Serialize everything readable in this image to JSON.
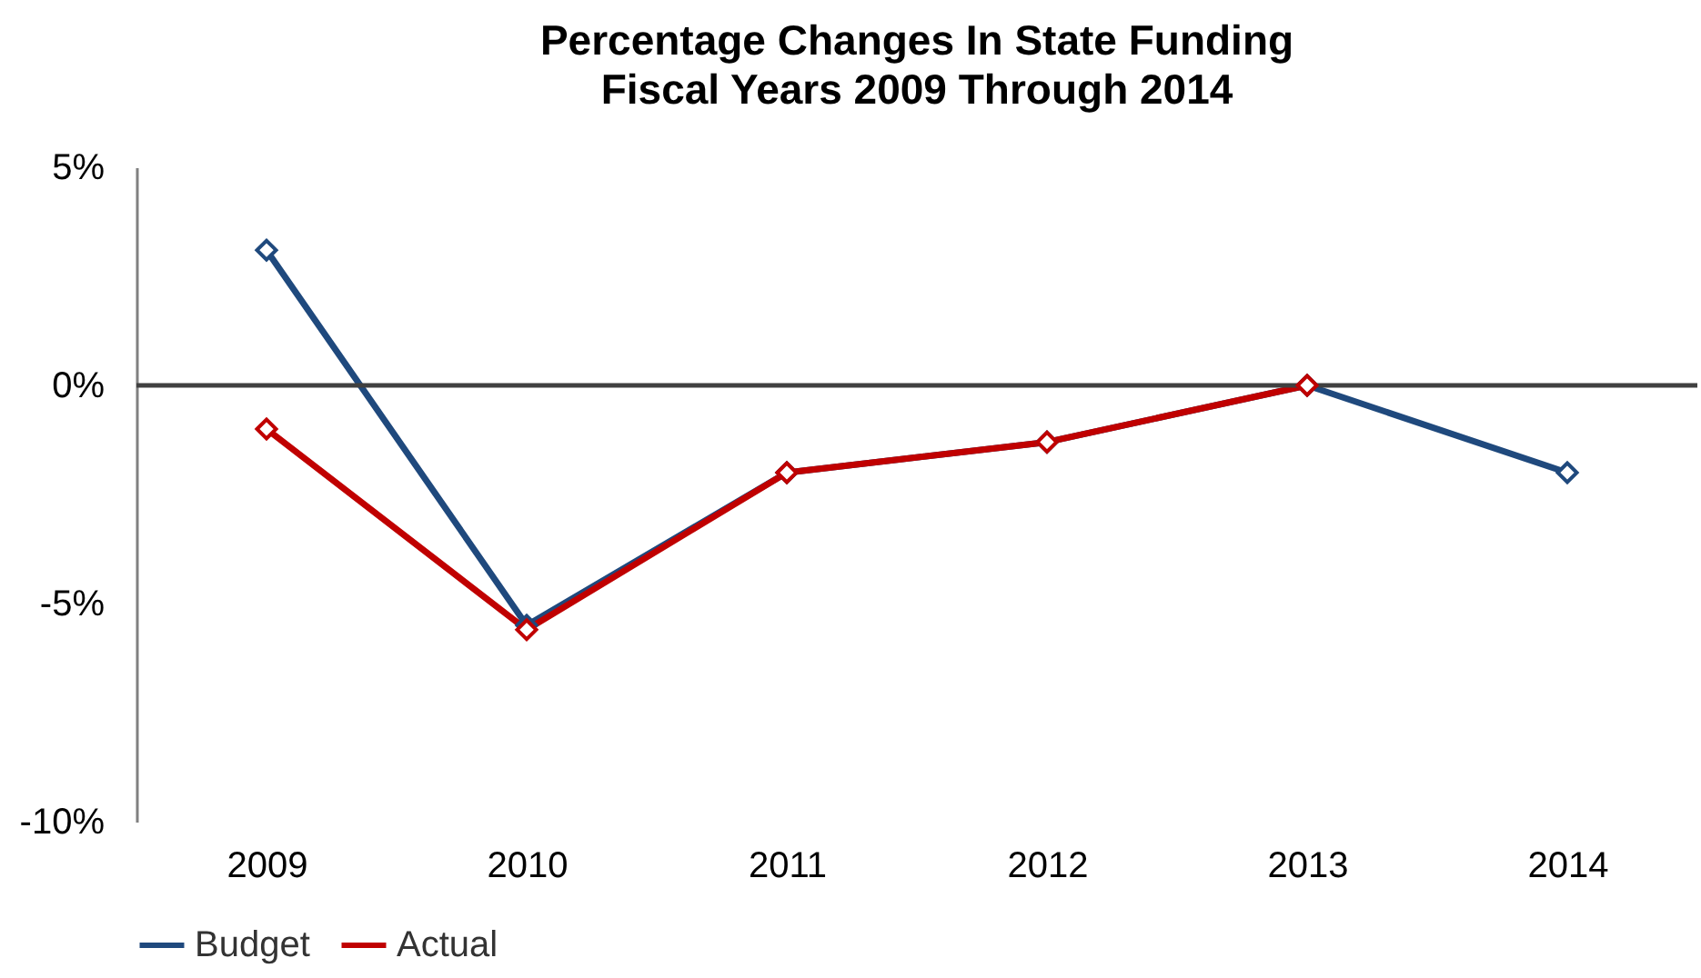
{
  "chart_data": {
    "type": "line",
    "title": "Percentage Changes In State Funding",
    "subtitle": "Fiscal Years 2009 Through 2014",
    "categories": [
      "2009",
      "2010",
      "2011",
      "2012",
      "2013",
      "2014"
    ],
    "series": [
      {
        "name": "Budget",
        "color": "#1f497d",
        "values": [
          3.1,
          -5.5,
          -2.0,
          -1.3,
          0,
          -2.0
        ]
      },
      {
        "name": "Actual",
        "color": "#c00000",
        "values": [
          -1.0,
          -5.6,
          -2.0,
          -1.3,
          0,
          null
        ]
      }
    ],
    "ylim": [
      -10,
      5
    ],
    "yticks": [
      {
        "value": -10,
        "label": "-10%"
      },
      {
        "value": -5,
        "label": "-5%"
      },
      {
        "value": 0,
        "label": "0%"
      },
      {
        "value": 5,
        "label": "5%"
      }
    ],
    "ref_lines": [
      {
        "axis": "y",
        "value": 0,
        "color": "#404040"
      }
    ],
    "grid": false,
    "legend": "bottom",
    "marker": "diamond",
    "line_style": "solid"
  }
}
